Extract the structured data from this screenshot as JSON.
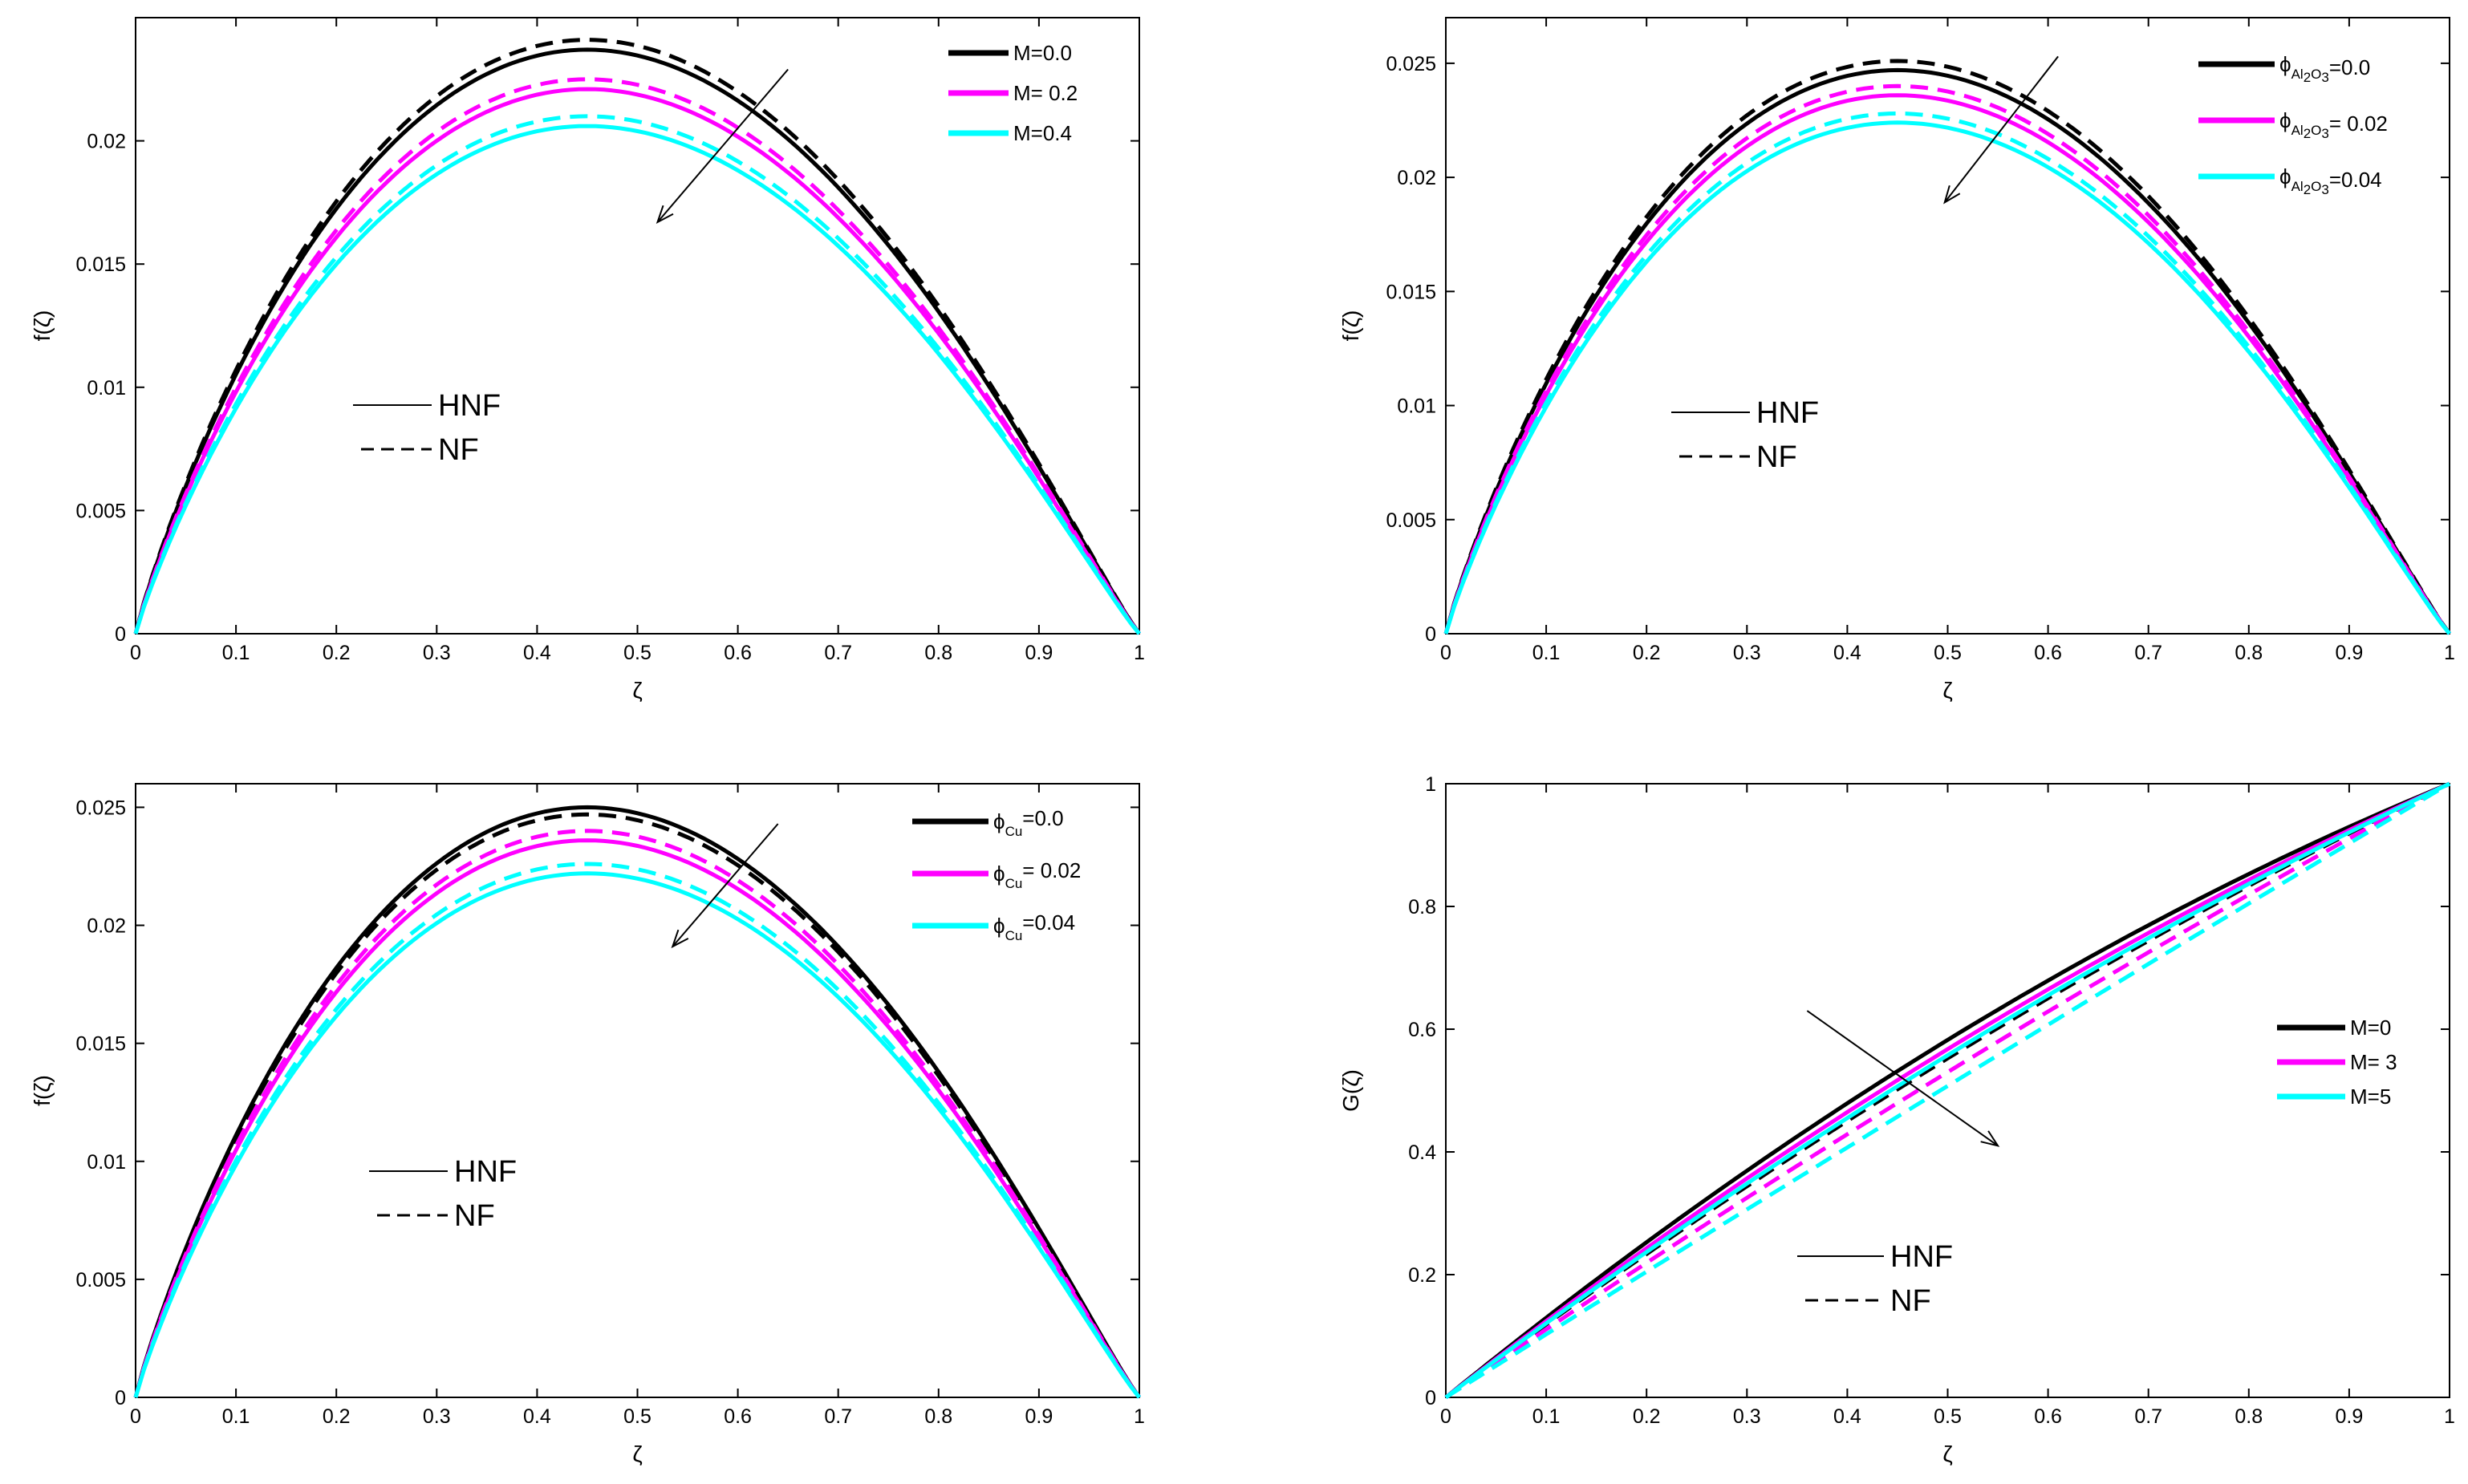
{
  "chart_data": [
    {
      "type": "line",
      "panel": "top-left",
      "xlabel": "ζ",
      "ylabel": "f(ζ)",
      "xlim": [
        0,
        1
      ],
      "ylim": [
        0,
        0.025
      ],
      "xticks": [
        0,
        0.1,
        0.2,
        0.3,
        0.4,
        0.5,
        0.6,
        0.7,
        0.8,
        0.9,
        1
      ],
      "xtick_labels": [
        "0",
        "0.1",
        "0.2",
        "0.3",
        "0.4",
        "0.5",
        "0.6",
        "0.7",
        "0.8",
        "0.9",
        "1"
      ],
      "yticks": [
        0,
        0.005,
        0.01,
        0.015,
        0.02
      ],
      "ytick_labels": [
        "0",
        "0.005",
        "0.01",
        "0.015",
        "0.02"
      ],
      "curve_shape": "profile",
      "peak_x": 0.45,
      "legend": {
        "position": "top-right",
        "entries": [
          {
            "label": "M=0.0",
            "color": "#000000"
          },
          {
            "label": "M= 0.2",
            "color": "#ff00ff"
          },
          {
            "label": "M=0.4",
            "color": "#00ffff"
          }
        ]
      },
      "style_legend": {
        "solid": "HNF",
        "dashed": "NF"
      },
      "series": [
        {
          "name": "M=0.0",
          "fluid": "HNF",
          "color": "#000000",
          "dash": false,
          "peak": 0.0237
        },
        {
          "name": "M=0.0",
          "fluid": "NF",
          "color": "#000000",
          "dash": true,
          "peak": 0.0241
        },
        {
          "name": "M= 0.2",
          "fluid": "HNF",
          "color": "#ff00ff",
          "dash": false,
          "peak": 0.0221
        },
        {
          "name": "M= 0.2",
          "fluid": "NF",
          "color": "#ff00ff",
          "dash": true,
          "peak": 0.0225
        },
        {
          "name": "M=0.4",
          "fluid": "HNF",
          "color": "#00ffff",
          "dash": false,
          "peak": 0.0206
        },
        {
          "name": "M=0.4",
          "fluid": "NF",
          "color": "#00ffff",
          "dash": true,
          "peak": 0.021
        }
      ],
      "arrow": {
        "from": [
          0.65,
          0.0229
        ],
        "to": [
          0.52,
          0.0167
        ]
      }
    },
    {
      "type": "line",
      "panel": "top-right",
      "xlabel": "ζ",
      "ylabel": "f(ζ)",
      "xlim": [
        0,
        1
      ],
      "ylim": [
        0,
        0.027
      ],
      "xticks": [
        0,
        0.1,
        0.2,
        0.3,
        0.4,
        0.5,
        0.6,
        0.7,
        0.8,
        0.9,
        1
      ],
      "xtick_labels": [
        "0",
        "0.1",
        "0.2",
        "0.3",
        "0.4",
        "0.5",
        "0.6",
        "0.7",
        "0.8",
        "0.9",
        "1"
      ],
      "yticks": [
        0,
        0.005,
        0.01,
        0.015,
        0.02,
        0.025
      ],
      "ytick_labels": [
        "0",
        "0.005",
        "0.01",
        "0.015",
        "0.02",
        "0.025"
      ],
      "curve_shape": "profile",
      "peak_x": 0.45,
      "legend": {
        "position": "top-right",
        "entries": [
          {
            "label": "=0.0",
            "symbol": "ϕ",
            "sub": "Al",
            "sub2": "2",
            "sub3": "O",
            "sub4": "3",
            "color": "#000000"
          },
          {
            "label": "= 0.02",
            "symbol": "ϕ",
            "sub": "Al",
            "sub2": "2",
            "sub3": "O",
            "sub4": "3",
            "color": "#ff00ff"
          },
          {
            "label": "=0.04",
            "symbol": "ϕ",
            "sub": "Al",
            "sub2": "2",
            "sub3": "O",
            "sub4": "3",
            "color": "#00ffff"
          }
        ]
      },
      "style_legend": {
        "solid": "HNF",
        "dashed": "NF"
      },
      "series": [
        {
          "name": "ϕAl2O3=0.0",
          "fluid": "HNF",
          "color": "#000000",
          "dash": false,
          "peak": 0.0247
        },
        {
          "name": "ϕAl2O3=0.0",
          "fluid": "NF",
          "color": "#000000",
          "dash": true,
          "peak": 0.0251
        },
        {
          "name": "ϕAl2O3= 0.02",
          "fluid": "HNF",
          "color": "#ff00ff",
          "dash": false,
          "peak": 0.0236
        },
        {
          "name": "ϕAl2O3= 0.02",
          "fluid": "NF",
          "color": "#ff00ff",
          "dash": true,
          "peak": 0.024
        },
        {
          "name": "ϕAl2O3=0.04",
          "fluid": "HNF",
          "color": "#00ffff",
          "dash": false,
          "peak": 0.0224
        },
        {
          "name": "ϕAl2O3=0.04",
          "fluid": "NF",
          "color": "#00ffff",
          "dash": true,
          "peak": 0.0228
        }
      ],
      "arrow": {
        "from": [
          0.61,
          0.0253
        ],
        "to": [
          0.497,
          0.0189
        ]
      }
    },
    {
      "type": "line",
      "panel": "bottom-left",
      "xlabel": "ζ",
      "ylabel": "f(ζ)",
      "xlim": [
        0,
        1
      ],
      "ylim": [
        0,
        0.026
      ],
      "xticks": [
        0,
        0.1,
        0.2,
        0.3,
        0.4,
        0.5,
        0.6,
        0.7,
        0.8,
        0.9,
        1
      ],
      "xtick_labels": [
        "0",
        "0.1",
        "0.2",
        "0.3",
        "0.4",
        "0.5",
        "0.6",
        "0.7",
        "0.8",
        "0.9",
        "1"
      ],
      "yticks": [
        0,
        0.005,
        0.01,
        0.015,
        0.02,
        0.025
      ],
      "ytick_labels": [
        "0",
        "0.005",
        "0.01",
        "0.015",
        "0.02",
        "0.025"
      ],
      "curve_shape": "profile",
      "peak_x": 0.45,
      "legend": {
        "position": "top-right",
        "entries": [
          {
            "label": "=0.0",
            "symbol": "ϕ",
            "sub": "Cu",
            "color": "#000000"
          },
          {
            "label": "= 0.02",
            "symbol": "ϕ",
            "sub": "Cu",
            "color": "#ff00ff"
          },
          {
            "label": "=0.04",
            "symbol": "ϕ",
            "sub": "Cu",
            "color": "#00ffff"
          }
        ]
      },
      "style_legend": {
        "solid": "HNF",
        "dashed": "NF"
      },
      "series": [
        {
          "name": "ϕCu=0.0",
          "fluid": "HNF",
          "color": "#000000",
          "dash": false,
          "peak": 0.025
        },
        {
          "name": "ϕCu=0.0",
          "fluid": "NF",
          "color": "#000000",
          "dash": true,
          "peak": 0.0247
        },
        {
          "name": "ϕCu= 0.02",
          "fluid": "HNF",
          "color": "#ff00ff",
          "dash": false,
          "peak": 0.0236
        },
        {
          "name": "ϕCu= 0.02",
          "fluid": "NF",
          "color": "#ff00ff",
          "dash": true,
          "peak": 0.024
        },
        {
          "name": "ϕCu=0.04",
          "fluid": "HNF",
          "color": "#00ffff",
          "dash": false,
          "peak": 0.0222
        },
        {
          "name": "ϕCu=0.04",
          "fluid": "NF",
          "color": "#00ffff",
          "dash": true,
          "peak": 0.0226
        }
      ],
      "arrow": {
        "from": [
          0.64,
          0.0243
        ],
        "to": [
          0.535,
          0.0191
        ]
      }
    },
    {
      "type": "line",
      "panel": "bottom-right",
      "xlabel": "ζ",
      "ylabel": "G(ζ)",
      "xlim": [
        0,
        1
      ],
      "ylim": [
        0,
        1
      ],
      "xticks": [
        0,
        0.1,
        0.2,
        0.3,
        0.4,
        0.5,
        0.6,
        0.7,
        0.8,
        0.9,
        1
      ],
      "xtick_labels": [
        "0",
        "0.1",
        "0.2",
        "0.3",
        "0.4",
        "0.5",
        "0.6",
        "0.7",
        "0.8",
        "0.9",
        "1"
      ],
      "yticks": [
        0,
        0.2,
        0.4,
        0.6,
        0.8,
        1
      ],
      "ytick_labels": [
        "0",
        "0.2",
        "0.4",
        "0.6",
        "0.8",
        "1"
      ],
      "curve_shape": "curved",
      "legend": {
        "position": "right",
        "entries": [
          {
            "label": "M=0",
            "color": "#000000"
          },
          {
            "label": "M= 3",
            "color": "#ff00ff"
          },
          {
            "label": "M=5",
            "color": "#00ffff"
          }
        ]
      },
      "style_legend": {
        "solid": "HNF",
        "dashed": "NF"
      },
      "series": [
        {
          "name": "M=0",
          "fluid": "HNF",
          "color": "#000000",
          "dash": false,
          "bend": 0.33
        },
        {
          "name": "M=0",
          "fluid": "NF",
          "color": "#000000",
          "dash": true,
          "bend": 0.21
        },
        {
          "name": "M= 3",
          "fluid": "HNF",
          "color": "#ff00ff",
          "dash": false,
          "bend": 0.27
        },
        {
          "name": "M= 3",
          "fluid": "NF",
          "color": "#ff00ff",
          "dash": true,
          "bend": 0.12
        },
        {
          "name": "M=5",
          "fluid": "HNF",
          "color": "#00ffff",
          "dash": false,
          "bend": 0.23
        },
        {
          "name": "M=5",
          "fluid": "NF",
          "color": "#00ffff",
          "dash": true,
          "bend": 0.03
        }
      ],
      "arrow": {
        "from": [
          0.36,
          0.63
        ],
        "to": [
          0.55,
          0.41
        ]
      }
    }
  ]
}
